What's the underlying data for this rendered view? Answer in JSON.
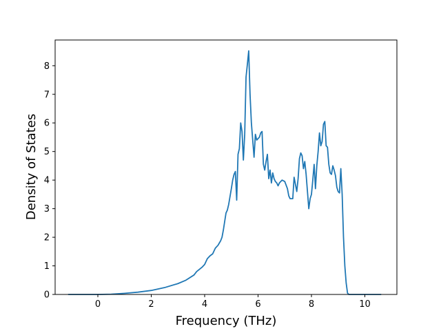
{
  "chart_data": {
    "type": "line",
    "title": "",
    "xlabel": "Frequency (THz)",
    "ylabel": "Density of States",
    "xlim": [
      -1.6,
      11.2
    ],
    "ylim": [
      0,
      8.9
    ],
    "grid": false,
    "legend": "none",
    "line_color": "#1f77b4",
    "x_ticks": [
      0,
      2,
      4,
      6,
      8,
      10
    ],
    "y_ticks": [
      0,
      1,
      2,
      3,
      4,
      5,
      6,
      7,
      8
    ],
    "series": [
      {
        "x": [
          -1.1,
          -0.5,
          0,
          0.5,
          1.0,
          1.5,
          2.0,
          2.5,
          3.0,
          3.3,
          3.6,
          3.7,
          3.9,
          4.0,
          4.1,
          4.2,
          4.3,
          4.4,
          4.5,
          4.55,
          4.6,
          4.65,
          4.7,
          4.75,
          4.8,
          4.85,
          4.9,
          5.0,
          5.05,
          5.1,
          5.15,
          5.2,
          5.25,
          5.3,
          5.35,
          5.4,
          5.45,
          5.5,
          5.55,
          5.6,
          5.65,
          5.7,
          5.75,
          5.8,
          5.85,
          5.9,
          5.95,
          6.0,
          6.05,
          6.1,
          6.15,
          6.2,
          6.25,
          6.3,
          6.35,
          6.4,
          6.45,
          6.5,
          6.55,
          6.6,
          6.65,
          6.7,
          6.75,
          6.8,
          6.9,
          7.0,
          7.1,
          7.15,
          7.2,
          7.3,
          7.35,
          7.4,
          7.45,
          7.5,
          7.55,
          7.6,
          7.65,
          7.7,
          7.75,
          7.8,
          7.85,
          7.9,
          7.95,
          8.0,
          8.05,
          8.1,
          8.15,
          8.2,
          8.25,
          8.3,
          8.35,
          8.4,
          8.45,
          8.5,
          8.55,
          8.6,
          8.65,
          8.7,
          8.75,
          8.8,
          8.85,
          8.9,
          8.95,
          9.0,
          9.05,
          9.1,
          9.15,
          9.2,
          9.25,
          9.3,
          9.35,
          9.4,
          9.45,
          9.5,
          9.55,
          9.6,
          9.65,
          9.7,
          10.0,
          10.6
        ],
        "values": [
          0,
          0,
          0,
          0.01,
          0.04,
          0.08,
          0.14,
          0.24,
          0.38,
          0.5,
          0.68,
          0.8,
          0.95,
          1.05,
          1.25,
          1.35,
          1.42,
          1.62,
          1.72,
          1.8,
          1.88,
          2.0,
          2.25,
          2.55,
          2.85,
          2.95,
          3.15,
          3.7,
          4.0,
          4.2,
          4.3,
          3.3,
          4.9,
          5.1,
          6.0,
          5.7,
          4.7,
          5.6,
          7.6,
          8.05,
          8.52,
          7.0,
          6.0,
          5.4,
          4.8,
          5.6,
          5.4,
          5.45,
          5.5,
          5.65,
          5.7,
          4.55,
          4.35,
          4.65,
          4.9,
          4.05,
          4.35,
          3.9,
          4.25,
          4.05,
          3.95,
          3.9,
          3.8,
          3.9,
          4.0,
          3.95,
          3.7,
          3.45,
          3.35,
          3.35,
          4.1,
          3.85,
          3.6,
          4.05,
          4.75,
          4.95,
          4.85,
          4.4,
          4.65,
          4.2,
          3.6,
          3.0,
          3.35,
          3.5,
          4.0,
          4.55,
          3.7,
          4.5,
          5.0,
          5.65,
          5.2,
          5.35,
          5.95,
          6.05,
          5.2,
          5.15,
          4.55,
          4.25,
          4.2,
          4.5,
          4.35,
          4.15,
          3.75,
          3.6,
          3.55,
          4.4,
          3.5,
          2.0,
          1.0,
          0.4,
          0.05,
          0,
          0,
          0,
          0,
          0,
          0,
          0,
          0,
          0
        ]
      }
    ]
  }
}
